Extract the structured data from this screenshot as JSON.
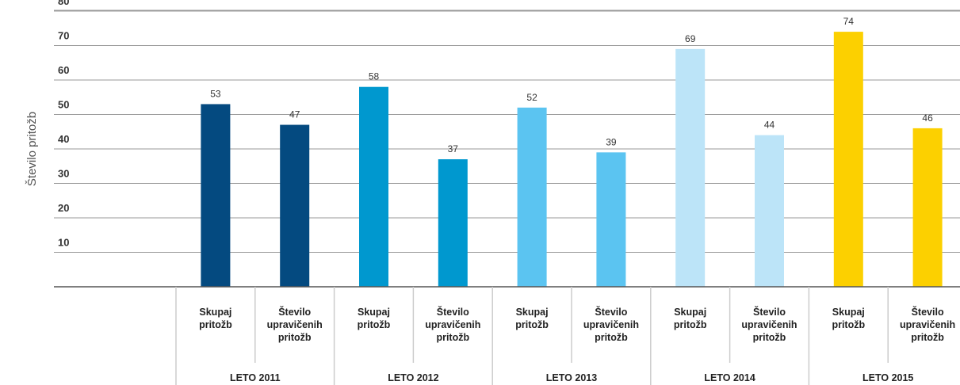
{
  "chart_data": {
    "type": "bar",
    "ylabel": "Število pritožb",
    "ylim": [
      0,
      80
    ],
    "yticks": [
      10,
      20,
      30,
      40,
      50,
      60,
      70,
      80
    ],
    "grid": true,
    "groups": [
      {
        "label": "LETO 2011",
        "color": "#044a80",
        "bars": [
          {
            "category": [
              "Skupaj",
              "pritožb"
            ],
            "value": 53
          },
          {
            "category": [
              "Število",
              "upravičenih",
              "pritožb"
            ],
            "value": 47
          }
        ]
      },
      {
        "label": "LETO 2012",
        "color": "#0098cf",
        "bars": [
          {
            "category": [
              "Skupaj",
              "pritožb"
            ],
            "value": 58
          },
          {
            "category": [
              "Število",
              "upravičenih",
              "pritožb"
            ],
            "value": 37
          }
        ]
      },
      {
        "label": "LETO 2013",
        "color": "#5bc4f1",
        "bars": [
          {
            "category": [
              "Skupaj",
              "pritožb"
            ],
            "value": 52
          },
          {
            "category": [
              "Število",
              "upravičenih",
              "pritožb"
            ],
            "value": 39
          }
        ]
      },
      {
        "label": "LETO 2014",
        "color": "#bce4f8",
        "bars": [
          {
            "category": [
              "Skupaj",
              "pritožb"
            ],
            "value": 69
          },
          {
            "category": [
              "Število",
              "upravičenih",
              "pritožb"
            ],
            "value": 44
          }
        ]
      },
      {
        "label": "LETO 2015",
        "color": "#fcd000",
        "bars": [
          {
            "category": [
              "Skupaj",
              "pritožb"
            ],
            "value": 74
          },
          {
            "category": [
              "Število",
              "upravičenih",
              "pritožb"
            ],
            "value": 46
          }
        ]
      }
    ]
  }
}
